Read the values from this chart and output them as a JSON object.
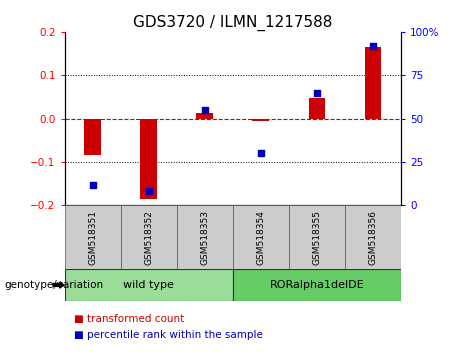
{
  "title": "GDS3720 / ILMN_1217588",
  "samples": [
    "GSM518351",
    "GSM518352",
    "GSM518353",
    "GSM518354",
    "GSM518355",
    "GSM518356"
  ],
  "transformed_count": [
    -0.085,
    -0.185,
    0.012,
    -0.005,
    0.048,
    0.165
  ],
  "percentile_rank_pct": [
    12,
    8,
    55,
    30,
    65,
    92
  ],
  "ylim_left": [
    -0.2,
    0.2
  ],
  "ylim_right": [
    0,
    100
  ],
  "yticks_left": [
    -0.2,
    -0.1,
    0.0,
    0.1,
    0.2
  ],
  "yticks_right": [
    0,
    25,
    50,
    75,
    100
  ],
  "bar_color": "#cc0000",
  "dot_color": "#0000bb",
  "zero_line_color": "#cc0000",
  "grid_color": "#000000",
  "genotype_groups": [
    {
      "label": "wild type",
      "start": 0,
      "end": 3,
      "color": "#99dd99"
    },
    {
      "label": "RORalpha1delDE",
      "start": 3,
      "end": 6,
      "color": "#66cc66"
    }
  ],
  "legend_items": [
    {
      "label": "transformed count",
      "color": "#cc0000"
    },
    {
      "label": "percentile rank within the sample",
      "color": "#0000bb"
    }
  ],
  "title_fontsize": 11,
  "tick_fontsize": 7.5,
  "sample_fontsize": 6.5,
  "legend_fontsize": 7.5,
  "background_color": "#ffffff",
  "plot_bg_color": "#ffffff",
  "sample_box_color": "#cccccc",
  "genotype_label": "genotype/variation",
  "bar_width": 0.3
}
